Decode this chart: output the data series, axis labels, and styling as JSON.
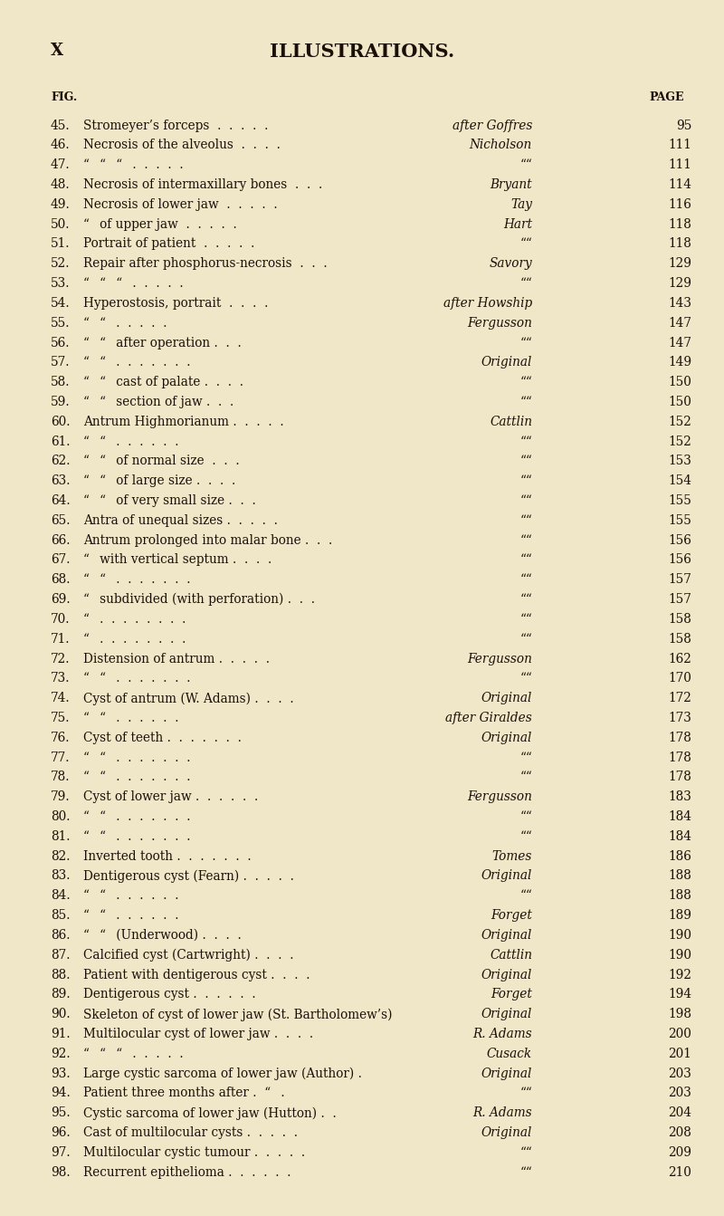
{
  "bg_color": "#f0e6c8",
  "text_color": "#1a1008",
  "page_label": "X",
  "title": "ILLUSTRATIONS.",
  "col_fig": "FIG.",
  "col_page": "PAGE",
  "rows": [
    {
      "num": "45.",
      "desc": "Stromeyer’s forceps  .  .  .  .  .",
      "source": "after Goffres",
      "source_italic": true,
      "page": "95"
    },
    {
      "num": "46.",
      "desc": "Necrosis of the alveolus  .  .  .  .",
      "source": "Nicholson",
      "source_italic": true,
      "page": "111"
    },
    {
      "num": "47.",
      "desc": "“  “  “  .  .  .  .  .",
      "source": "““",
      "source_italic": false,
      "page": "111"
    },
    {
      "num": "48.",
      "desc": "Necrosis of intermaxillary bones  .  .  .",
      "source": "Bryant",
      "source_italic": true,
      "page": "114"
    },
    {
      "num": "49.",
      "desc": "Necrosis of lower jaw  .  .  .  .  .",
      "source": "Tay",
      "source_italic": true,
      "page": "116"
    },
    {
      "num": "50.",
      "desc": "“  of upper jaw  .  .  .  .  .",
      "source": "Hart",
      "source_italic": true,
      "page": "118"
    },
    {
      "num": "51.",
      "desc": "Portrait of patient  .  .  .  .  .",
      "source": "““",
      "source_italic": false,
      "page": "118"
    },
    {
      "num": "52.",
      "desc": "Repair after phosphorus-necrosis  .  .  .",
      "source": "Savory",
      "source_italic": true,
      "page": "129"
    },
    {
      "num": "53.",
      "desc": "“  “  “  .  .  .  .  .",
      "source": "““",
      "source_italic": false,
      "page": "129"
    },
    {
      "num": "54.",
      "desc": "Hyperostosis, portrait  .  .  .  .",
      "source": "after Howship",
      "source_italic": true,
      "page": "143"
    },
    {
      "num": "55.",
      "desc": "“  “  .  .  .  .  .",
      "source": "Fergusson",
      "source_italic": true,
      "page": "147"
    },
    {
      "num": "56.",
      "desc": "“  “  after operation .  .  .",
      "source": "““",
      "source_italic": false,
      "page": "147"
    },
    {
      "num": "57.",
      "desc": "“  “  .  .  .  .  .  .  .",
      "source": "Original",
      "source_italic": true,
      "page": "149"
    },
    {
      "num": "58.",
      "desc": "“  “  cast of palate .  .  .  .",
      "source": "““",
      "source_italic": false,
      "page": "150"
    },
    {
      "num": "59.",
      "desc": "“  “  section of jaw .  .  .",
      "source": "““",
      "source_italic": false,
      "page": "150"
    },
    {
      "num": "60.",
      "desc": "Antrum Highmorianum .  .  .  .  .",
      "source": "Cattlin",
      "source_italic": true,
      "page": "152"
    },
    {
      "num": "61.",
      "desc": "“  “  .  .  .  .  .  .",
      "source": "““",
      "source_italic": false,
      "page": "152"
    },
    {
      "num": "62.",
      "desc": "“  “  of normal size  .  .  .",
      "source": "““",
      "source_italic": false,
      "page": "153"
    },
    {
      "num": "63.",
      "desc": "“  “  of large size .  .  .  .",
      "source": "““",
      "source_italic": false,
      "page": "154"
    },
    {
      "num": "64.",
      "desc": "“  “  of very small size .  .  .",
      "source": "““",
      "source_italic": false,
      "page": "155"
    },
    {
      "num": "65.",
      "desc": "Antra of unequal sizes .  .  .  .  .",
      "source": "““",
      "source_italic": false,
      "page": "155"
    },
    {
      "num": "66.",
      "desc": "Antrum prolonged into malar bone .  .  .",
      "source": "““",
      "source_italic": false,
      "page": "156"
    },
    {
      "num": "67.",
      "desc": "“  with vertical septum .  .  .  .",
      "source": "““",
      "source_italic": false,
      "page": "156"
    },
    {
      "num": "68.",
      "desc": "“  “  .  .  .  .  .  .  .",
      "source": "““",
      "source_italic": false,
      "page": "157"
    },
    {
      "num": "69.",
      "desc": "“  subdivided (with perforation) .  .  .",
      "source": "““",
      "source_italic": false,
      "page": "157"
    },
    {
      "num": "70.",
      "desc": "“  .  .  .  .  .  .  .  .",
      "source": "““",
      "source_italic": false,
      "page": "158"
    },
    {
      "num": "71.",
      "desc": "“  .  .  .  .  .  .  .  .",
      "source": "““",
      "source_italic": false,
      "page": "158"
    },
    {
      "num": "72.",
      "desc": "Distension of antrum .  .  .  .  .",
      "source": "Fergusson",
      "source_italic": true,
      "page": "162"
    },
    {
      "num": "73.",
      "desc": "“  “  .  .  .  .  .  .  .",
      "source": "““",
      "source_italic": false,
      "page": "170"
    },
    {
      "num": "74.",
      "desc": "Cyst of antrum (W. Adams) .  .  .  .",
      "source": "Original",
      "source_italic": true,
      "page": "172"
    },
    {
      "num": "75.",
      "desc": "“  “  .  .  .  .  .  .",
      "source": "after Giraldes",
      "source_italic": true,
      "page": "173"
    },
    {
      "num": "76.",
      "desc": "Cyst of teeth .  .  .  .  .  .  .",
      "source": "Original",
      "source_italic": true,
      "page": "178"
    },
    {
      "num": "77.",
      "desc": "“  “  .  .  .  .  .  .  .",
      "source": "““",
      "source_italic": false,
      "page": "178"
    },
    {
      "num": "78.",
      "desc": "“  “  .  .  .  .  .  .  .",
      "source": "““",
      "source_italic": false,
      "page": "178"
    },
    {
      "num": "79.",
      "desc": "Cyst of lower jaw .  .  .  .  .  .",
      "source": "Fergusson",
      "source_italic": true,
      "page": "183"
    },
    {
      "num": "80.",
      "desc": "“  “  .  .  .  .  .  .  .",
      "source": "““",
      "source_italic": false,
      "page": "184"
    },
    {
      "num": "81.",
      "desc": "“  “  .  .  .  .  .  .  .",
      "source": "““",
      "source_italic": false,
      "page": "184"
    },
    {
      "num": "82.",
      "desc": "Inverted tooth .  .  .  .  .  .  .",
      "source": "Tomes",
      "source_italic": true,
      "page": "186"
    },
    {
      "num": "83.",
      "desc": "Dentigerous cyst (Fearn) .  .  .  .  .",
      "source": "Original",
      "source_italic": true,
      "page": "188"
    },
    {
      "num": "84.",
      "desc": "“  “  .  .  .  .  .  .",
      "source": "““",
      "source_italic": false,
      "page": "188"
    },
    {
      "num": "85.",
      "desc": "“  “  .  .  .  .  .  .",
      "source": "Forget",
      "source_italic": true,
      "page": "189"
    },
    {
      "num": "86.",
      "desc": "“  “  (Underwood) .  .  .  .",
      "source": "Original",
      "source_italic": true,
      "page": "190"
    },
    {
      "num": "87.",
      "desc": "Calcified cyst (Cartwright) .  .  .  .",
      "source": "Cattlin",
      "source_italic": true,
      "page": "190"
    },
    {
      "num": "88.",
      "desc": "Patient with dentigerous cyst .  .  .  .",
      "source": "Original",
      "source_italic": true,
      "page": "192"
    },
    {
      "num": "89.",
      "desc": "Dentigerous cyst .  .  .  .  .  .",
      "source": "Forget",
      "source_italic": true,
      "page": "194"
    },
    {
      "num": "90.",
      "desc": "Skeleton of cyst of lower jaw (St. Bartholomew’s)",
      "source": "Original",
      "source_italic": true,
      "page": "198"
    },
    {
      "num": "91.",
      "desc": "Multilocular cyst of lower jaw .  .  .  .",
      "source": "R. Adams",
      "source_italic": true,
      "page": "200"
    },
    {
      "num": "92.",
      "desc": "“  “  “  .  .  .  .  .",
      "source": "Cusack",
      "source_italic": true,
      "page": "201"
    },
    {
      "num": "93.",
      "desc": "Large cystic sarcoma of lower jaw (Author) .",
      "source": "Original",
      "source_italic": true,
      "page": "203"
    },
    {
      "num": "94.",
      "desc": "Patient three months after .  “  .",
      "source": "““",
      "source_italic": false,
      "page": "203"
    },
    {
      "num": "95.",
      "desc": "Cystic sarcoma of lower jaw (Hutton) .  .",
      "source": "R. Adams",
      "source_italic": true,
      "page": "204"
    },
    {
      "num": "96.",
      "desc": "Cast of multilocular cysts .  .  .  .  .",
      "source": "Original",
      "source_italic": true,
      "page": "208"
    },
    {
      "num": "97.",
      "desc": "Multilocular cystic tumour .  .  .  .  .",
      "source": "““",
      "source_italic": false,
      "page": "209"
    },
    {
      "num": "98.",
      "desc": "Recurrent epithelioma .  .  .  .  .  .",
      "source": "““",
      "source_italic": false,
      "page": "210"
    }
  ]
}
